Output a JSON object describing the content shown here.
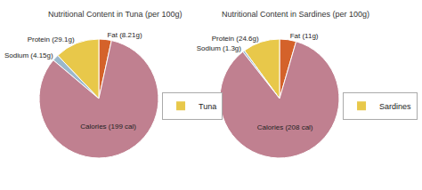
{
  "chart_data": [
    {
      "type": "pie",
      "title": "Nutritional Content in Tuna (per 100g)",
      "categories": [
        "Fat (8.21g)",
        "Protein (29.1g)",
        "Sodium (4.15g)",
        "Calories (199 cal)"
      ],
      "colors": [
        "#D4622A",
        "#E8C84A",
        "#9BB8CC",
        "#C08090"
      ],
      "series": [
        {
          "name": "Tuna",
          "color": "#E8C84A",
          "values": [
            8.21,
            29.1,
            4.15,
            199
          ]
        }
      ],
      "legend": "right"
    },
    {
      "type": "pie",
      "title": "Nutritional Content in Sardines (per 100g)",
      "categories": [
        "Fat (11g)",
        "Protein (24.6g)",
        "Sodium (1.3g)",
        "Calories (208 cal)"
      ],
      "colors": [
        "#D4622A",
        "#E8C84A",
        "#9BB8CC",
        "#C08090"
      ],
      "series": [
        {
          "name": "Sardines",
          "color": "#E8C84A",
          "values": [
            11,
            24.6,
            1.3,
            208
          ]
        }
      ],
      "legend": "right"
    }
  ]
}
